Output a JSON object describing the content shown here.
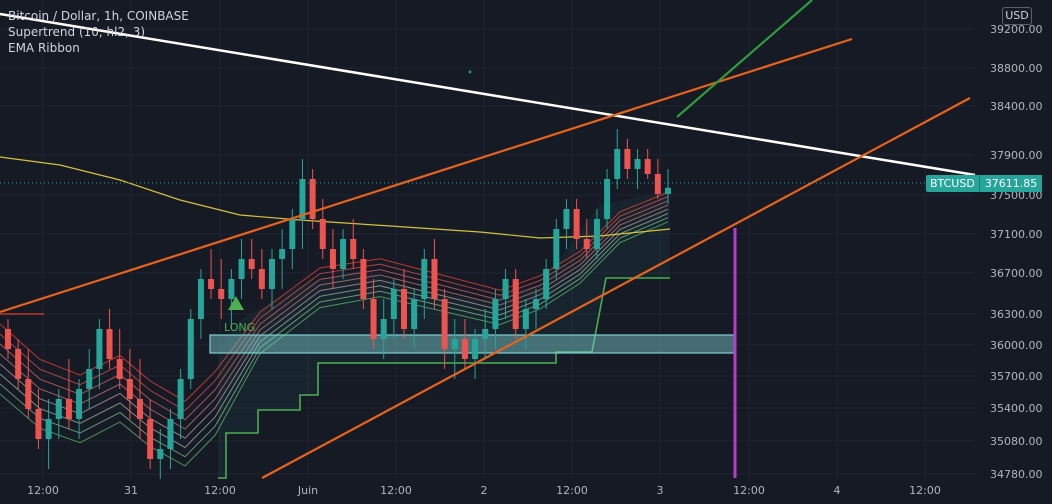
{
  "legend": {
    "symbol": "Bitcoin / Dollar, 1h, COINBASE",
    "indicator1": "Supertrend (10, hl2, 3)",
    "indicator2": "EMA Ribbon"
  },
  "currency": "USD",
  "last_price_tag": {
    "symbol": "BTCUSD",
    "value": "37611.85"
  },
  "long_label": "LONG",
  "colors": {
    "background": "#161a25",
    "up": "#26a69a",
    "down": "#ef5350",
    "trendline_white": "#ffffff",
    "trendline_orange": "#e8641c",
    "trendline_green": "#2e9d3a",
    "ema_long": "#d6c13a",
    "supertrend": "#4caf50",
    "zone": "#7ecfd1",
    "marker": "#b03fc9"
  },
  "chart_data": {
    "type": "candlestick",
    "title": "Bitcoin / Dollar, 1h, COINBASE",
    "y_ticks": [
      "39200.00",
      "38800.00",
      "38400.00",
      "37900.00",
      "37500.00",
      "37100.00",
      "36700.00",
      "36300.00",
      "36000.00",
      "35700.00",
      "35400.00",
      "35080.00",
      "34780.00"
    ],
    "x_ticks": [
      "12:00",
      "31",
      "12:00",
      "Juin",
      "12:00",
      "2",
      "12:00",
      "3",
      "12:00",
      "4",
      "12:00"
    ],
    "ylim": [
      34700,
      39400
    ],
    "last_price": 37611.85,
    "candles": [
      {
        "o": 36200,
        "h": 36300,
        "l": 35900,
        "c": 36000
      },
      {
        "o": 36000,
        "h": 36100,
        "l": 35600,
        "c": 35700
      },
      {
        "o": 35700,
        "h": 36000,
        "l": 35300,
        "c": 35400
      },
      {
        "o": 35400,
        "h": 35600,
        "l": 35000,
        "c": 35100
      },
      {
        "o": 35100,
        "h": 35500,
        "l": 34800,
        "c": 35300
      },
      {
        "o": 35300,
        "h": 35600,
        "l": 35100,
        "c": 35500
      },
      {
        "o": 35500,
        "h": 35900,
        "l": 35200,
        "c": 35300
      },
      {
        "o": 35300,
        "h": 35700,
        "l": 35100,
        "c": 35600
      },
      {
        "o": 35600,
        "h": 36000,
        "l": 35400,
        "c": 35800
      },
      {
        "o": 35800,
        "h": 36300,
        "l": 35600,
        "c": 36200
      },
      {
        "o": 36200,
        "h": 36400,
        "l": 35800,
        "c": 35900
      },
      {
        "o": 35900,
        "h": 36200,
        "l": 35600,
        "c": 35700
      },
      {
        "o": 35700,
        "h": 36000,
        "l": 35300,
        "c": 35500
      },
      {
        "o": 35500,
        "h": 35900,
        "l": 35100,
        "c": 35300
      },
      {
        "o": 35300,
        "h": 35500,
        "l": 34800,
        "c": 34900
      },
      {
        "o": 34900,
        "h": 35200,
        "l": 34700,
        "c": 35000
      },
      {
        "o": 35000,
        "h": 35400,
        "l": 34800,
        "c": 35300
      },
      {
        "o": 35300,
        "h": 35800,
        "l": 35100,
        "c": 35700
      },
      {
        "o": 35700,
        "h": 36400,
        "l": 35600,
        "c": 36300
      },
      {
        "o": 36300,
        "h": 36800,
        "l": 36100,
        "c": 36700
      },
      {
        "o": 36700,
        "h": 37000,
        "l": 36500,
        "c": 36600
      },
      {
        "o": 36600,
        "h": 36900,
        "l": 36300,
        "c": 36500
      },
      {
        "o": 36500,
        "h": 36800,
        "l": 36200,
        "c": 36700
      },
      {
        "o": 36700,
        "h": 37100,
        "l": 36500,
        "c": 36900
      },
      {
        "o": 36900,
        "h": 37100,
        "l": 36700,
        "c": 36800
      },
      {
        "o": 36800,
        "h": 37000,
        "l": 36500,
        "c": 36600
      },
      {
        "o": 36600,
        "h": 37000,
        "l": 36400,
        "c": 36900
      },
      {
        "o": 36900,
        "h": 37200,
        "l": 36600,
        "c": 37000
      },
      {
        "o": 37000,
        "h": 37400,
        "l": 36800,
        "c": 37300
      },
      {
        "o": 37300,
        "h": 37900,
        "l": 37000,
        "c": 37700
      },
      {
        "o": 37700,
        "h": 37800,
        "l": 37200,
        "c": 37300
      },
      {
        "o": 37300,
        "h": 37500,
        "l": 36900,
        "c": 37000
      },
      {
        "o": 37000,
        "h": 37200,
        "l": 36600,
        "c": 36800
      },
      {
        "o": 36800,
        "h": 37200,
        "l": 36700,
        "c": 37100
      },
      {
        "o": 37100,
        "h": 37300,
        "l": 36800,
        "c": 36900
      },
      {
        "o": 36900,
        "h": 37000,
        "l": 36400,
        "c": 36500
      },
      {
        "o": 36500,
        "h": 36700,
        "l": 36000,
        "c": 36100
      },
      {
        "o": 36100,
        "h": 36500,
        "l": 35900,
        "c": 36300
      },
      {
        "o": 36300,
        "h": 36700,
        "l": 36100,
        "c": 36600
      },
      {
        "o": 36600,
        "h": 36800,
        "l": 36100,
        "c": 36200
      },
      {
        "o": 36200,
        "h": 36600,
        "l": 36000,
        "c": 36500
      },
      {
        "o": 36500,
        "h": 37000,
        "l": 36300,
        "c": 36900
      },
      {
        "o": 36900,
        "h": 37100,
        "l": 36400,
        "c": 36500
      },
      {
        "o": 36500,
        "h": 36600,
        "l": 35800,
        "c": 36000
      },
      {
        "o": 36000,
        "h": 36300,
        "l": 35700,
        "c": 36100
      },
      {
        "o": 36100,
        "h": 36300,
        "l": 35800,
        "c": 35900
      },
      {
        "o": 35900,
        "h": 36200,
        "l": 35700,
        "c": 36100
      },
      {
        "o": 36100,
        "h": 36400,
        "l": 35900,
        "c": 36200
      },
      {
        "o": 36200,
        "h": 36600,
        "l": 36000,
        "c": 36500
      },
      {
        "o": 36500,
        "h": 36800,
        "l": 36300,
        "c": 36700
      },
      {
        "o": 36700,
        "h": 36800,
        "l": 36100,
        "c": 36200
      },
      {
        "o": 36200,
        "h": 36500,
        "l": 36000,
        "c": 36400
      },
      {
        "o": 36400,
        "h": 36600,
        "l": 36200,
        "c": 36500
      },
      {
        "o": 36500,
        "h": 36900,
        "l": 36400,
        "c": 36800
      },
      {
        "o": 36800,
        "h": 37300,
        "l": 36700,
        "c": 37200
      },
      {
        "o": 37200,
        "h": 37500,
        "l": 37000,
        "c": 37400
      },
      {
        "o": 37400,
        "h": 37500,
        "l": 37000,
        "c": 37100
      },
      {
        "o": 37100,
        "h": 37300,
        "l": 36900,
        "c": 37000
      },
      {
        "o": 37000,
        "h": 37400,
        "l": 36900,
        "c": 37300
      },
      {
        "o": 37300,
        "h": 37800,
        "l": 37200,
        "c": 37700
      },
      {
        "o": 37700,
        "h": 38200,
        "l": 37600,
        "c": 38000
      },
      {
        "o": 38000,
        "h": 38100,
        "l": 37700,
        "c": 37800
      },
      {
        "o": 37800,
        "h": 38000,
        "l": 37600,
        "c": 37900
      },
      {
        "o": 37900,
        "h": 38000,
        "l": 37700,
        "c": 37750
      },
      {
        "o": 37750,
        "h": 37900,
        "l": 37500,
        "c": 37550
      },
      {
        "o": 37550,
        "h": 37800,
        "l": 37450,
        "c": 37612
      }
    ]
  }
}
